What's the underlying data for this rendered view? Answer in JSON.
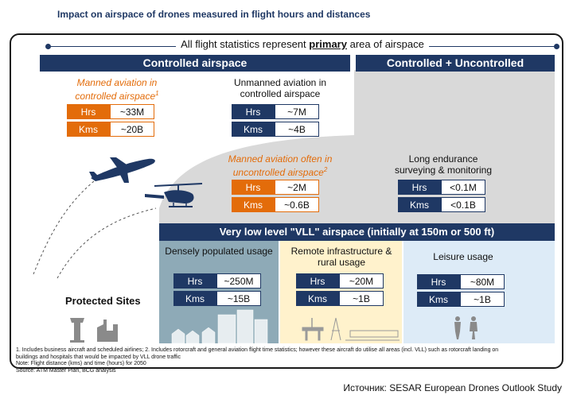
{
  "title": "Impact on airspace of drones measured in flight hours and distances",
  "banner": {
    "prefix": "All flight statistics represent",
    "emphasis": "primary",
    "suffix": "area of airspace"
  },
  "headers": {
    "controlled": "Controlled airspace",
    "controlled_uncontrolled": "Controlled + Uncontrolled",
    "vll": "Very low level \"VLL\" airspace (initially at 150m or 500 ft)"
  },
  "labels": {
    "hrs": "Hrs",
    "kms": "Kms"
  },
  "blocks": {
    "manned_controlled": {
      "label": "Manned aviation in controlled airspace",
      "sup": "1",
      "hrs": "~33M",
      "kms": "~20B"
    },
    "unmanned_controlled": {
      "label": "Unmanned aviation in controlled airspace",
      "hrs": "~7M",
      "kms": "~4B"
    },
    "manned_uncontrolled": {
      "label": "Manned aviation often in uncontrolled airspace",
      "sup": "2",
      "hrs": "~2M",
      "kms": "~0.6B"
    },
    "long_endurance": {
      "label": "Long endurance surveying & monitoring",
      "hrs": "<0.1M",
      "kms": "<0.1B"
    },
    "dense": {
      "label": "Densely populated usage",
      "hrs": "~250M",
      "kms": "~15B"
    },
    "remote": {
      "label": "Remote infrastructure & rural usage",
      "hrs": "~20M",
      "kms": "~1B"
    },
    "leisure": {
      "label": "Leisure usage",
      "hrs": "~80M",
      "kms": "~1B"
    }
  },
  "protected_sites": "Protected Sites",
  "footnotes": {
    "line1": "1. Includes business aircraft and scheduled airlines; 2. Includes rotorcraft and general aviation flight time statistics; however these aircraft do utilise all areas (incl. VLL) such as rotorcraft landing on",
    "line2": "buildings and hospitals that would be impacted by VLL drone traffic",
    "line3": "Note: Flight distance (kms) and time (hours) for 2050",
    "line4": "Source: ATM Master Plan, BCG analysis"
  },
  "source": "Источник: SESAR European Drones Outlook Study",
  "colors": {
    "navy": "#1f3864",
    "orange": "#e36c0a",
    "grey": "#d9d9d9",
    "dense_bg": "#8eaab7",
    "remote_bg": "#fff2cc",
    "leisure_bg": "#ddebf7"
  }
}
